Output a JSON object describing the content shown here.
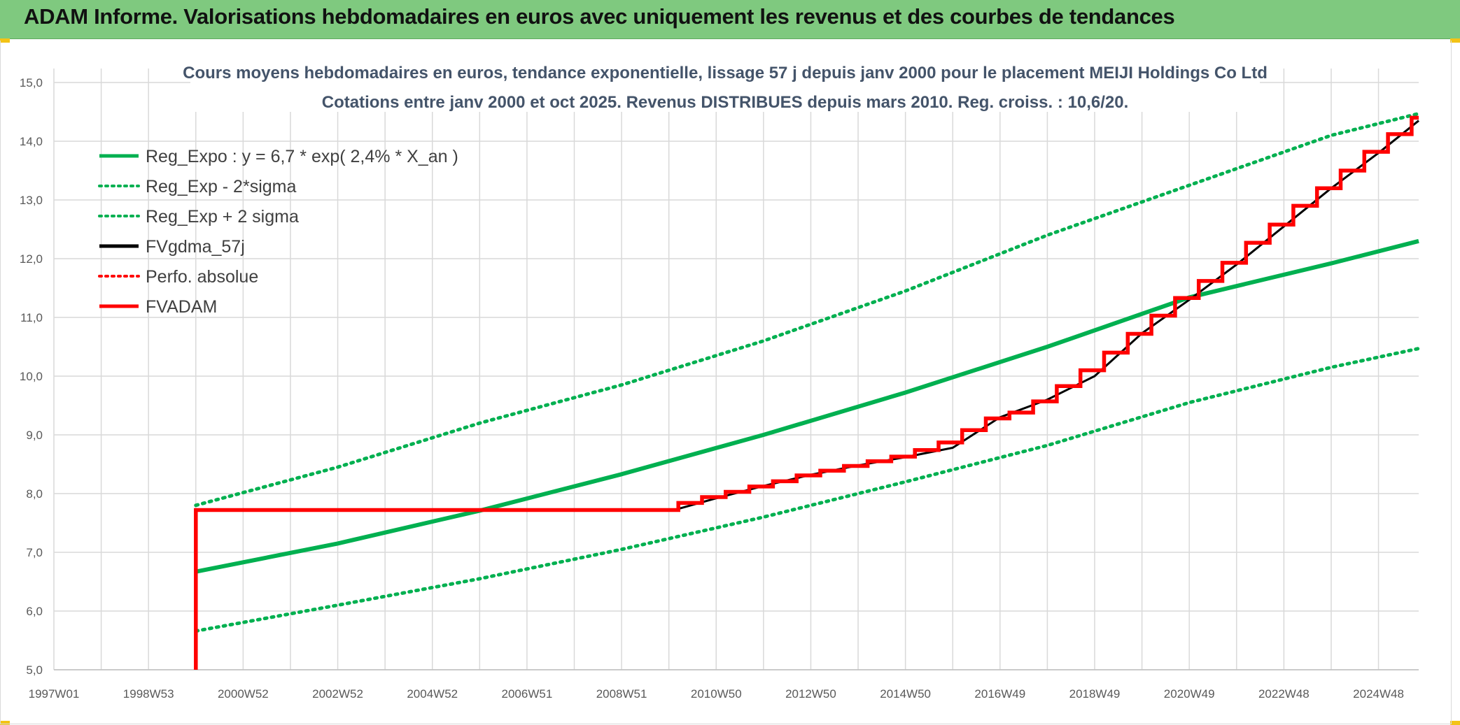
{
  "banner": {
    "title": "ADAM Informe. Valorisations hebdomadaires en euros avec uniquement les revenus et des courbes de tendances"
  },
  "colors": {
    "banner_bg": "#7fc97f",
    "corner_accent": "#f3c316",
    "regression": "#00b050",
    "fvgdma": "#000000",
    "fvadam": "#ff0000",
    "grid": "#d9d9d9",
    "title_text": "#44546a",
    "tick_text": "#595959"
  },
  "chart_data": {
    "type": "line",
    "title_lines": [
      "Cours moyens hebdomadaires en euros, tendance exponentielle, lissage 57 j depuis janv 2000 pour le placement MEIJI Holdings Co Ltd",
      "Cotations entre janv 2000 et oct 2025. Revenus DISTRIBUES depuis mars 2010. Reg. croiss. : 10,6/20."
    ],
    "xlabel": "",
    "ylabel": "",
    "x_ticks": [
      "1997W01",
      "1998W53",
      "2000W52",
      "2002W52",
      "2004W52",
      "2006W51",
      "2008W51",
      "2010W50",
      "2012W50",
      "2014W50",
      "2016W49",
      "2018W49",
      "2020W49",
      "2022W48",
      "2024W48"
    ],
    "x_range_years": [
      1997.0,
      2025.85
    ],
    "y_ticks": [
      "5,0",
      "6,0",
      "7,0",
      "8,0",
      "9,0",
      "10,0",
      "11,0",
      "12,0",
      "13,0",
      "14,0",
      "15,0"
    ],
    "ylim": [
      5,
      15
    ],
    "grid": true,
    "legend_position": "top-left",
    "legend": [
      {
        "label": "Reg_Expo : y = 6,7 * exp( 2,4% *  X_an )",
        "color": "#00b050",
        "style": "solid"
      },
      {
        "label": "Reg_Exp - 2*sigma",
        "color": "#00b050",
        "style": "dotted"
      },
      {
        "label": "Reg_Exp + 2 sigma",
        "color": "#00b050",
        "style": "dotted"
      },
      {
        "label": "FVgdma_57j",
        "color": "#000000",
        "style": "solid"
      },
      {
        "label": "Perfo. absolue",
        "color": "#ff0000",
        "style": "dotted"
      },
      {
        "label": "FVADAM",
        "color": "#ff0000",
        "style": "solid"
      }
    ],
    "series": [
      {
        "name": "Reg_Expo : y = 6,7 * exp( 2,4% *  X_an )",
        "style": "solid",
        "color": "#00b050",
        "x": [
          2000.0,
          2003.0,
          2006.0,
          2009.0,
          2012.0,
          2015.0,
          2018.0,
          2021.0,
          2024.0,
          2025.85
        ],
        "y": [
          6.67,
          7.15,
          7.71,
          8.33,
          9.0,
          9.72,
          10.5,
          11.34,
          11.92,
          12.3
        ]
      },
      {
        "name": "Reg_Exp - 2*sigma",
        "style": "dotted",
        "color": "#00b050",
        "x": [
          2000.0,
          2003.0,
          2006.0,
          2009.0,
          2012.0,
          2015.0,
          2018.0,
          2021.0,
          2024.0,
          2025.85
        ],
        "y": [
          5.66,
          6.1,
          6.55,
          7.05,
          7.6,
          8.2,
          8.82,
          9.55,
          10.15,
          10.47
        ]
      },
      {
        "name": "Reg_Exp + 2 sigma",
        "style": "dotted",
        "color": "#00b050",
        "x": [
          2000.0,
          2003.0,
          2006.0,
          2009.0,
          2012.0,
          2015.0,
          2018.0,
          2021.0,
          2024.0,
          2025.85
        ],
        "y": [
          7.8,
          8.45,
          9.2,
          9.85,
          10.6,
          11.45,
          12.4,
          13.25,
          14.1,
          14.47
        ]
      },
      {
        "name": "FVgdma_57j",
        "style": "solid",
        "color": "#000000",
        "x": [
          2010.2,
          2011.0,
          2012.0,
          2013.0,
          2014.0,
          2015.0,
          2016.0,
          2017.0,
          2018.0,
          2019.0,
          2020.0,
          2021.0,
          2022.0,
          2023.0,
          2024.0,
          2025.0,
          2025.85
        ],
        "y": [
          7.74,
          7.92,
          8.13,
          8.32,
          8.48,
          8.62,
          8.78,
          9.3,
          9.6,
          10.0,
          10.73,
          11.3,
          11.9,
          12.55,
          13.2,
          13.8,
          14.35
        ]
      },
      {
        "name": "FVADAM",
        "style": "solid",
        "color": "#ff0000",
        "x": [
          2000.0,
          2000.0,
          2010.2,
          2010.2,
          2010.7,
          2010.7,
          2011.2,
          2011.2,
          2011.7,
          2011.7,
          2012.2,
          2012.2,
          2012.7,
          2012.7,
          2013.2,
          2013.2,
          2013.7,
          2013.7,
          2014.2,
          2014.2,
          2014.7,
          2014.7,
          2015.2,
          2015.2,
          2015.7,
          2015.7,
          2016.2,
          2016.2,
          2016.7,
          2016.7,
          2017.2,
          2017.2,
          2017.7,
          2017.7,
          2018.2,
          2018.2,
          2018.7,
          2018.7,
          2019.2,
          2019.2,
          2019.7,
          2019.7,
          2020.2,
          2020.2,
          2020.7,
          2020.7,
          2021.2,
          2021.2,
          2021.7,
          2021.7,
          2022.2,
          2022.2,
          2022.7,
          2022.7,
          2023.2,
          2023.2,
          2023.7,
          2023.7,
          2024.2,
          2024.2,
          2024.7,
          2024.7,
          2025.2,
          2025.2,
          2025.7,
          2025.7,
          2025.85
        ],
        "y": [
          5.0,
          7.72,
          7.72,
          7.84,
          7.84,
          7.94,
          7.94,
          8.03,
          8.03,
          8.12,
          8.12,
          8.21,
          8.21,
          8.31,
          8.31,
          8.39,
          8.39,
          8.47,
          8.47,
          8.55,
          8.55,
          8.63,
          8.63,
          8.74,
          8.74,
          8.87,
          8.87,
          9.08,
          9.08,
          9.28,
          9.28,
          9.38,
          9.38,
          9.57,
          9.57,
          9.83,
          9.83,
          10.1,
          10.1,
          10.4,
          10.4,
          10.72,
          10.72,
          11.03,
          11.03,
          11.33,
          11.33,
          11.62,
          11.62,
          11.93,
          11.93,
          12.27,
          12.27,
          12.58,
          12.58,
          12.9,
          12.9,
          13.2,
          13.2,
          13.5,
          13.5,
          13.82,
          13.82,
          14.12,
          14.12,
          14.4,
          14.4
        ]
      }
    ]
  }
}
